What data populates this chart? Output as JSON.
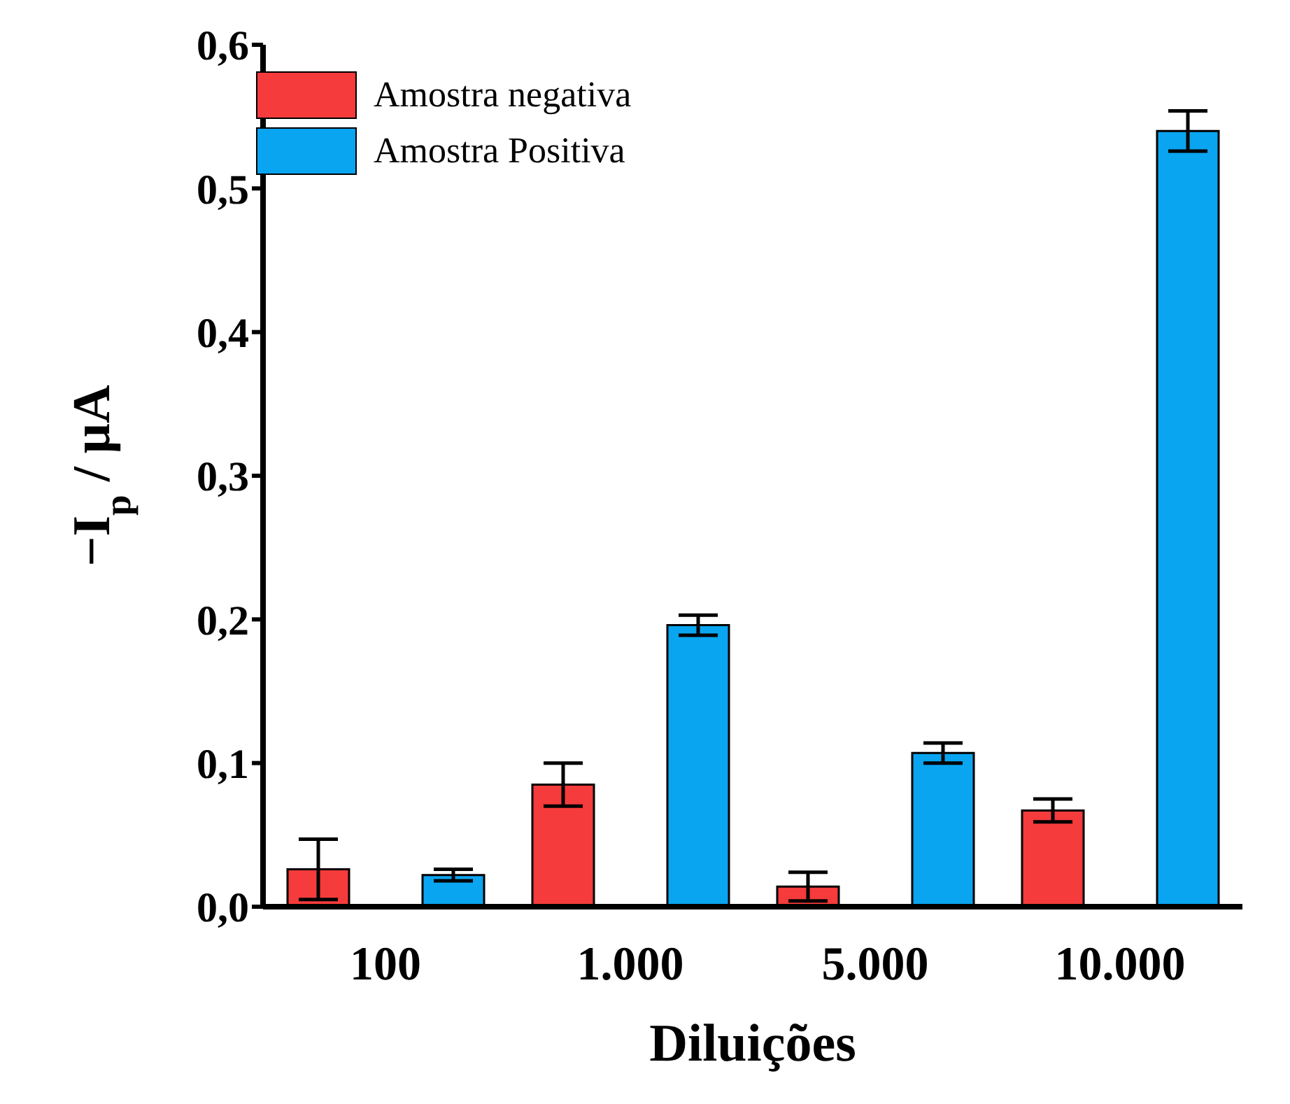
{
  "chart_data": {
    "type": "bar",
    "xlabel": "Diluições",
    "ylabel": "−I$_{p}$ / μA",
    "categories": [
      "100",
      "1.000",
      "5.000",
      "10.000"
    ],
    "series": [
      {
        "name": "Amostra negativa",
        "color": "#f53b3b",
        "values": [
          0.026,
          0.085,
          0.014,
          0.067
        ],
        "errors": [
          0.021,
          0.015,
          0.01,
          0.008
        ]
      },
      {
        "name": "Amostra Positiva",
        "color": "#0aa5f0",
        "values": [
          0.022,
          0.196,
          0.107,
          0.54
        ],
        "errors": [
          0.004,
          0.007,
          0.007,
          0.014
        ]
      }
    ],
    "ylim": [
      0,
      0.6
    ],
    "yticks": [
      {
        "value": 0,
        "label": "0,0"
      },
      {
        "value": 0.1,
        "label": "0,1"
      },
      {
        "value": 0.2,
        "label": "0,2"
      },
      {
        "value": 0.3,
        "label": "0,3"
      },
      {
        "value": 0.4,
        "label": "0,4"
      },
      {
        "value": 0.5,
        "label": "0,5"
      },
      {
        "value": 0.6,
        "label": "0,6"
      }
    ],
    "grid": false,
    "legend": "top left"
  }
}
